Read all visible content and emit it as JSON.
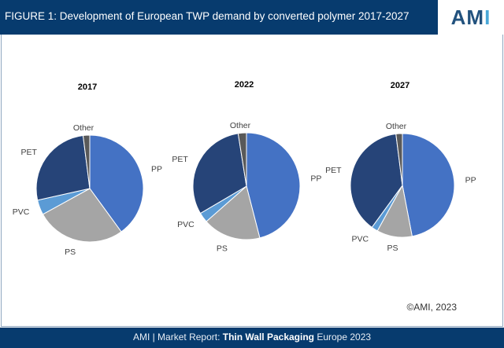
{
  "header": {
    "title": "FIGURE 1: Development of European TWP demand by converted polymer 2017-2027",
    "logo": "AMI"
  },
  "colors": {
    "PP": "#4472C4",
    "PS": "#A5A5A5",
    "PVC": "#5B9BD5",
    "PET": "#264478",
    "Other": "#595959",
    "header": "#073b6e"
  },
  "chart_data": [
    {
      "type": "pie",
      "title": "2017",
      "labels": [
        "PP",
        "PS",
        "PVC",
        "PET",
        "Other"
      ],
      "values": [
        40,
        27,
        4.5,
        26.5,
        2
      ]
    },
    {
      "type": "pie",
      "title": "2022",
      "labels": [
        "PP",
        "PS",
        "PVC",
        "PET",
        "Other"
      ],
      "values": [
        46,
        17.5,
        3,
        31,
        2.5
      ]
    },
    {
      "type": "pie",
      "title": "2027",
      "labels": [
        "PP",
        "PS",
        "PVC",
        "PET",
        "Other"
      ],
      "values": [
        47,
        11,
        2,
        38,
        2
      ]
    }
  ],
  "copyright": "©AMI, 2023",
  "footer": {
    "prefix": "AMI | Market Report: ",
    "bold": "Thin Wall Packaging",
    "suffix": " Europe 2023"
  }
}
